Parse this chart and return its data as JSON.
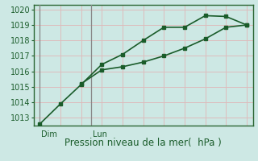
{
  "line1_x": [
    0,
    1,
    2,
    3,
    4,
    5,
    6,
    7,
    8,
    9,
    10
  ],
  "line1_y": [
    1012.6,
    1013.9,
    1015.15,
    1016.45,
    1017.1,
    1018.0,
    1018.85,
    1018.85,
    1019.6,
    1019.55,
    1019.0
  ],
  "line2_x": [
    2,
    3,
    4,
    5,
    6,
    7,
    8,
    9,
    10
  ],
  "line2_y": [
    1015.2,
    1016.1,
    1016.3,
    1016.6,
    1017.0,
    1017.5,
    1018.1,
    1018.85,
    1019.0
  ],
  "ylim": [
    1012.5,
    1020.3
  ],
  "yticks": [
    1013,
    1014,
    1015,
    1016,
    1017,
    1018,
    1019,
    1020
  ],
  "xlim": [
    -0.3,
    10.3
  ],
  "n_vgrid": 11,
  "dim_x": 0.0,
  "lun_x": 2.5,
  "dim_label": "Dim",
  "lun_label": "Lun",
  "xlabel": "Pression niveau de la mer(  hPa )",
  "bg_color": "#cde8e4",
  "grid_h_color": "#ddbcbc",
  "grid_v_color": "#ddbcbc",
  "line_color": "#1a5c2a",
  "vline_color": "#888888",
  "spine_color": "#2a6632",
  "marker": "s",
  "markersize": 3.0,
  "linewidth": 1.2,
  "label_color": "#1a5c2a",
  "xlabel_fontsize": 8.5,
  "tick_fontsize": 7.0
}
